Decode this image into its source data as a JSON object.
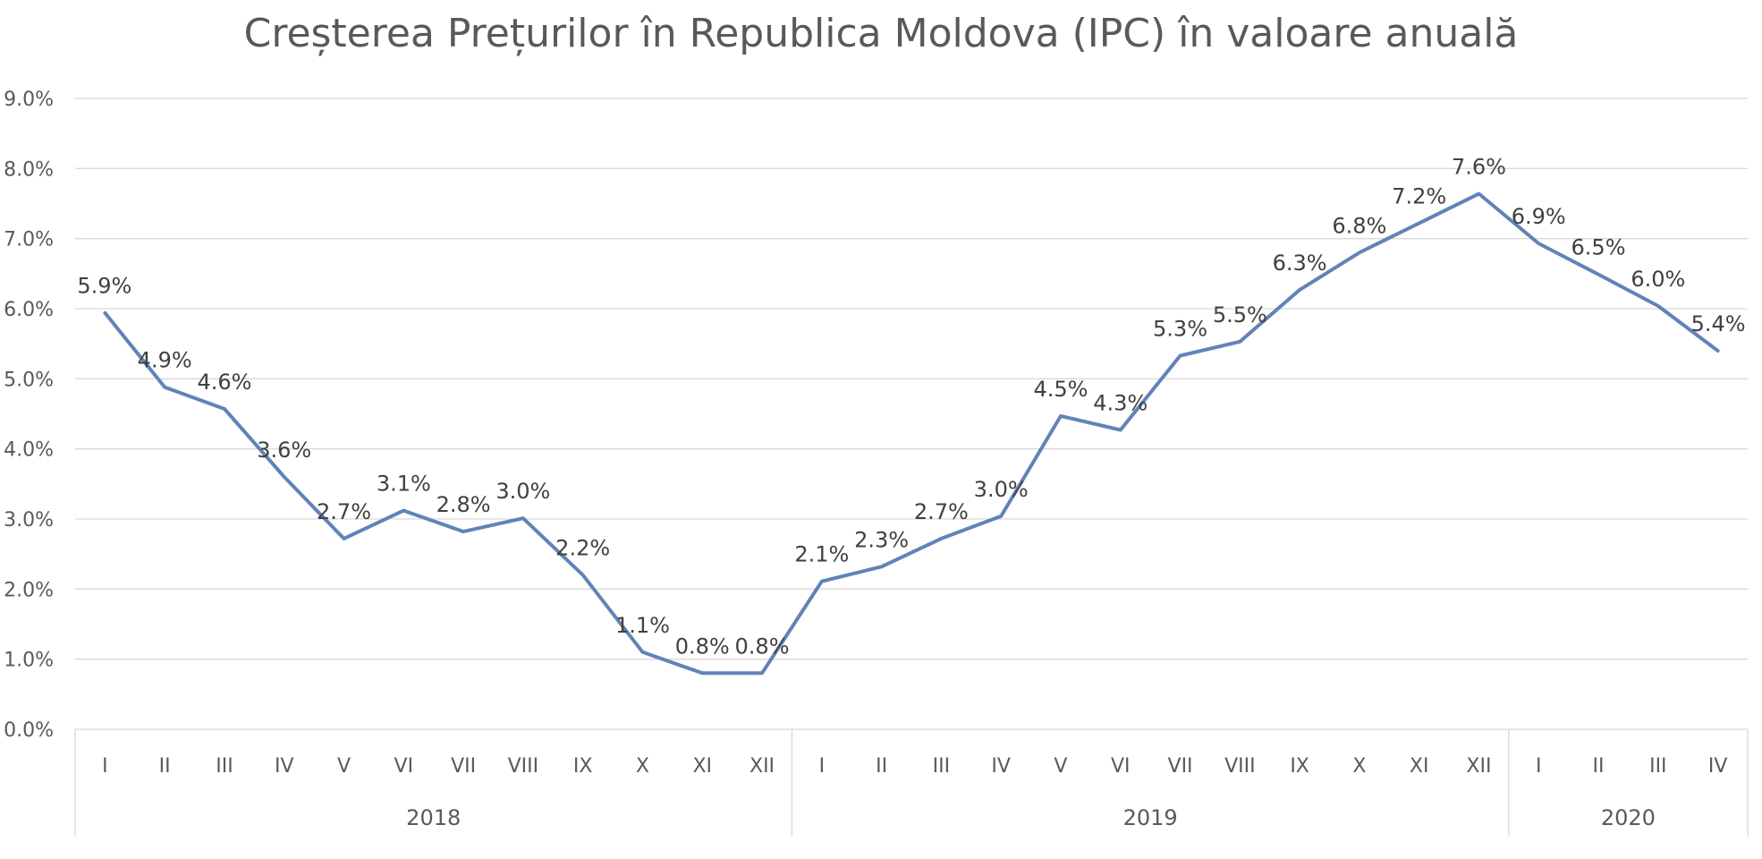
{
  "chart_data": {
    "type": "line",
    "title": "Creșterea Prețurilor în Republica Moldova (IPC) în valoare anuală",
    "xlabel": "",
    "ylabel": "",
    "ylim": [
      0,
      9
    ],
    "y_ticks": [
      "0.0%",
      "1.0%",
      "2.0%",
      "3.0%",
      "4.0%",
      "5.0%",
      "6.0%",
      "7.0%",
      "8.0%",
      "9.0%"
    ],
    "grid": true,
    "legend": "none",
    "categories": [
      "I",
      "II",
      "III",
      "IV",
      "V",
      "VI",
      "VII",
      "VIII",
      "IX",
      "X",
      "XI",
      "XII",
      "I",
      "II",
      "III",
      "IV",
      "V",
      "VI",
      "VII",
      "VIII",
      "IX",
      "X",
      "XI",
      "XII",
      "I",
      "II",
      "III",
      "IV"
    ],
    "groups": [
      {
        "label": "2018",
        "count": 12
      },
      {
        "label": "2019",
        "count": 12
      },
      {
        "label": "2020",
        "count": 4
      }
    ],
    "series": [
      {
        "color": "#6083b8",
        "values": [
          5.94,
          4.88,
          4.57,
          3.6,
          2.72,
          3.12,
          2.82,
          3.01,
          2.2,
          1.1,
          0.8,
          0.8,
          2.11,
          2.32,
          2.72,
          3.04,
          4.47,
          4.27,
          5.33,
          5.53,
          6.27,
          6.8,
          7.22,
          7.64,
          6.93,
          6.49,
          6.04,
          5.4
        ],
        "labels": [
          "5.9%",
          "4.9%",
          "4.6%",
          "3.6%",
          "2.7%",
          "3.1%",
          "2.8%",
          "3.0%",
          "2.2%",
          "1.1%",
          "0.8%",
          "0.8%",
          "2.1%",
          "2.3%",
          "2.7%",
          "3.0%",
          "4.5%",
          "4.3%",
          "5.3%",
          "5.5%",
          "6.3%",
          "6.8%",
          "7.2%",
          "7.6%",
          "6.9%",
          "6.5%",
          "6.0%",
          "5.4%"
        ]
      }
    ]
  }
}
